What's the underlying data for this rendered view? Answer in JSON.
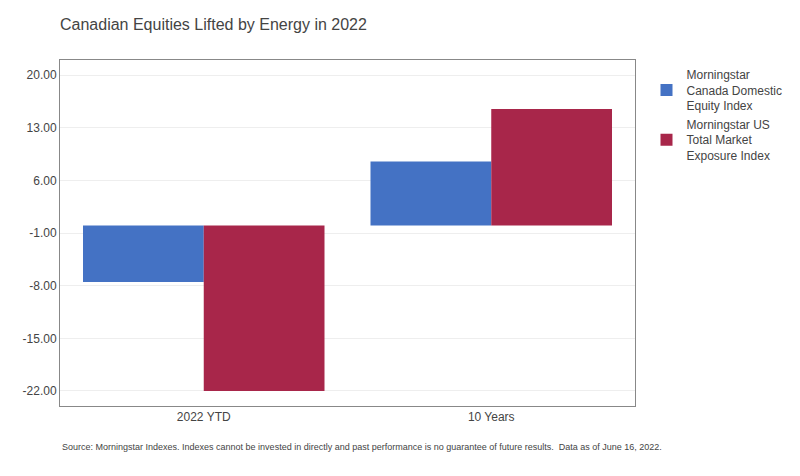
{
  "chart_data": {
    "type": "bar",
    "title": "Canadian Equities Lifted by Energy in 2022",
    "categories": [
      "2022 YTD",
      "10 Years"
    ],
    "series": [
      {
        "name": "Morningstar\nCanada Domestic\nEquity Index",
        "color": "#4472C4",
        "values": [
          -7.5,
          8.5
        ]
      },
      {
        "name": "Morningstar US\nTotal Market\nExposure Index",
        "color": "#A8264A",
        "values": [
          -22.0,
          15.5
        ]
      }
    ],
    "ylim": [
      -24,
      22
    ],
    "yticks": [
      {
        "value": 20,
        "label": "20.00"
      },
      {
        "value": 13,
        "label": "13.00"
      },
      {
        "value": 6,
        "label": "6.00"
      },
      {
        "value": -1,
        "label": "-1.00"
      },
      {
        "value": -8,
        "label": "-8.00"
      },
      {
        "value": -15,
        "label": "-15.00"
      },
      {
        "value": -22,
        "label": "-22.00"
      }
    ],
    "grid": true,
    "legend": "right",
    "annotations": [
      "Source: Morningstar Indexes. Indexes cannot be invested in directly and past performance is no guarantee of future results.  Data as of June 16, 2022."
    ]
  }
}
